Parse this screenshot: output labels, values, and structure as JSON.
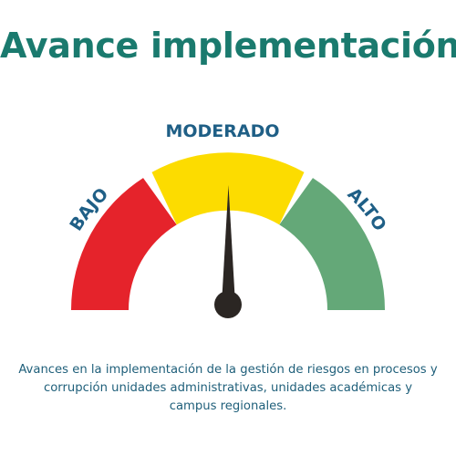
{
  "title": "Avance implementación",
  "gauge": {
    "labels": {
      "low": "BAJO",
      "medium": "MODERADO",
      "high": "ALTO"
    },
    "reading": "MODERADO",
    "colors": {
      "low": "#e5232b",
      "medium": "#fcdc00",
      "high": "#64a878",
      "needle": "#2b2623",
      "label": "#1f5f86"
    }
  },
  "caption": "Avances en la implementación de la gestión de riesgos en procesos y corrupción unidades administrativas, unidades académicas y campus regionales."
}
